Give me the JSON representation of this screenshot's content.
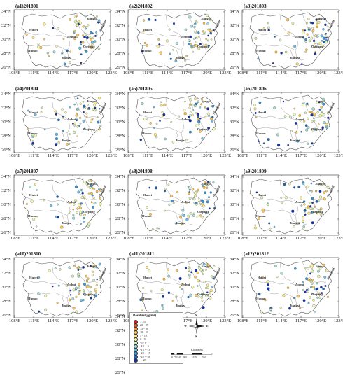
{
  "lat_labels": [
    "34°N",
    "32°N",
    "30°N",
    "28°N",
    "26°N"
  ],
  "lon_labels": [
    "108°E",
    "111°E",
    "114°E",
    "117°E",
    "120°E",
    "123°E"
  ],
  "panels": [
    {
      "id": "(a1)201801"
    },
    {
      "id": "(a2)201802"
    },
    {
      "id": "(a3)201803"
    },
    {
      "id": "(a4)201804"
    },
    {
      "id": "(a5)201805"
    },
    {
      "id": "(a6)201806"
    },
    {
      "id": "(a7)201807"
    },
    {
      "id": "(a8)201808"
    },
    {
      "id": "(a9)201809"
    },
    {
      "id": "(a10)201810"
    },
    {
      "id": "(a11)201811"
    },
    {
      "id": "(a12)201812"
    }
  ],
  "provinces": {
    "jiangsu": "Jiangsu",
    "anhui": "Anhui",
    "hubei": "Hubei",
    "shanghai": "Shanghai",
    "zhejiang": "Zhejiang",
    "hunan": "Hunan",
    "jiangxi": "Jiangxi"
  },
  "legend": {
    "title": "Residual(μg/m³)",
    "classes": [
      {
        "label": "> 25",
        "color": "#d7191c"
      },
      {
        "label": "20 - 25",
        "color": "#e8552b"
      },
      {
        "label": "15 - 20",
        "color": "#f59a3c"
      },
      {
        "label": "10 - 15",
        "color": "#fdc55a"
      },
      {
        "label": "5 - 10",
        "color": "#fee98a"
      },
      {
        "label": "0 - 5",
        "color": "#f3f9b0"
      },
      {
        "label": "-5 - 0",
        "color": "#d7efc0"
      },
      {
        "label": "-10 - -5",
        "color": "#a5dbd7"
      },
      {
        "label": "-15 - -10",
        "color": "#6bbfe3"
      },
      {
        "label": "-20 - -15",
        "color": "#3a92d0"
      },
      {
        "label": "-25 - -20",
        "color": "#2166ac"
      },
      {
        "label": "< -25",
        "color": "#1432a8"
      }
    ],
    "compass": {
      "n": "N",
      "s": "S",
      "e": "E",
      "w": "W"
    },
    "scale_labels": [
      "0",
      "70",
      "140",
      "280",
      "420",
      "560"
    ],
    "scale_unit": "Kilometers"
  }
}
